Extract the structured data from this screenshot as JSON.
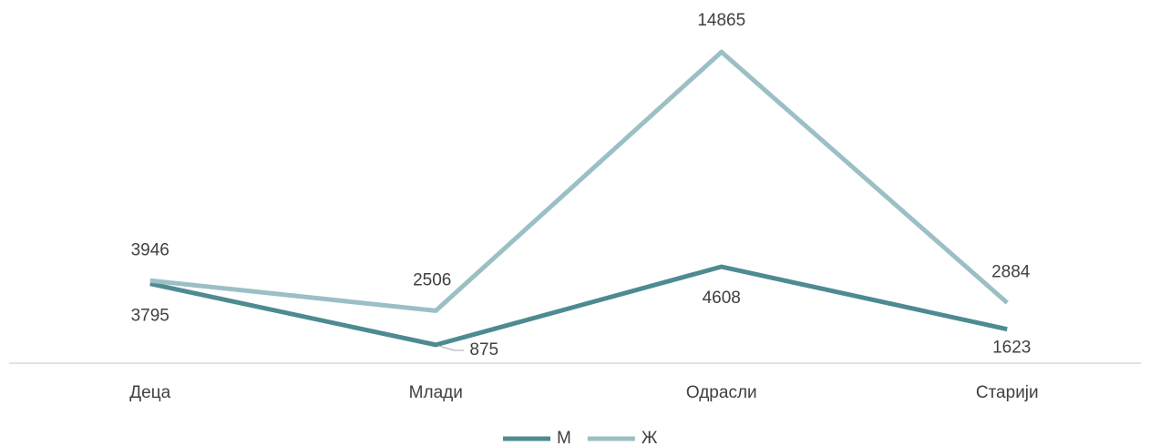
{
  "chart_data": {
    "type": "line",
    "categories": [
      "Деца",
      "Млади",
      "Одрасли",
      "Старији"
    ],
    "series": [
      {
        "name": "М",
        "color": "#4e8a91",
        "values": [
          3795,
          875,
          4608,
          1623
        ]
      },
      {
        "name": "Ж",
        "color": "#9bbfc5",
        "values": [
          3946,
          2506,
          14865,
          2884
        ]
      }
    ],
    "ylim": [
      0,
      16000
    ],
    "legend": "bottom"
  }
}
